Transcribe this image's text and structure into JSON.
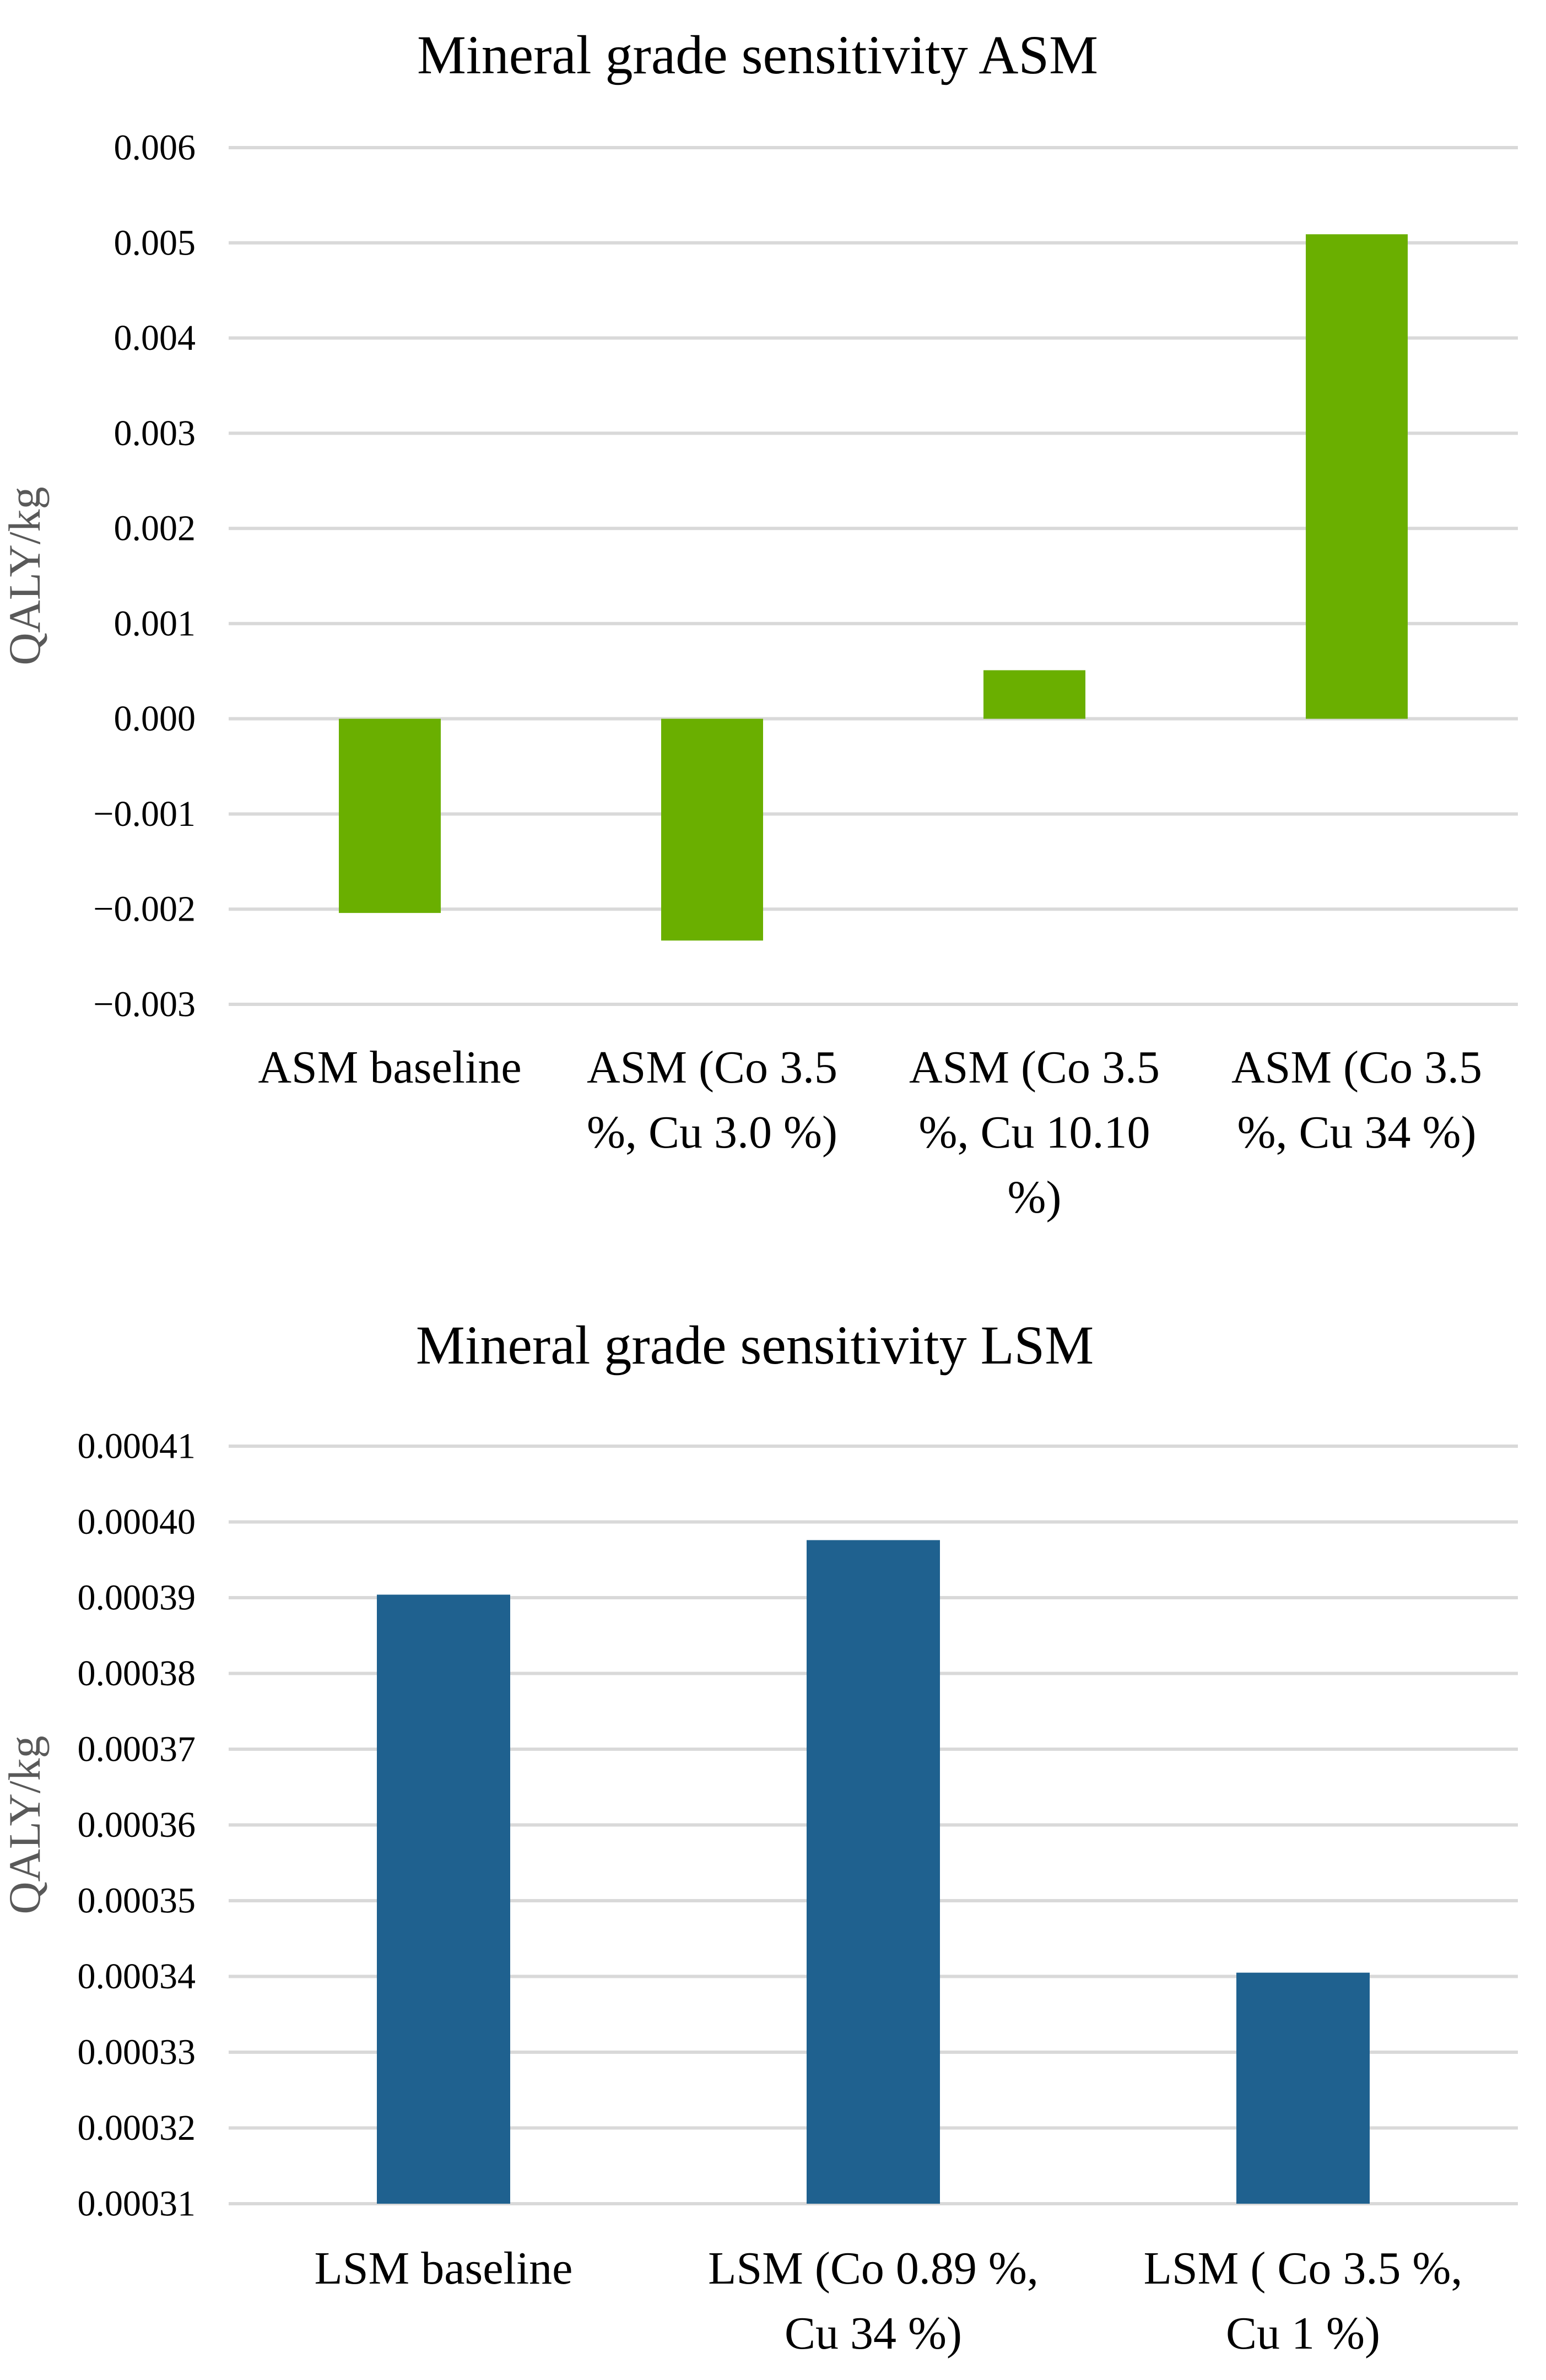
{
  "chart_data": [
    {
      "type": "bar",
      "title": "Mineral grade sensitivity  ASM",
      "xlabel": "",
      "ylabel": "QALY/kg",
      "ylim": [
        -0.003,
        0.006
      ],
      "ytick_step": 0.001,
      "ytick_decimals": 3,
      "color": "#6aaf00",
      "categories": [
        [
          "ASM baseline"
        ],
        [
          "ASM (Co 3.5",
          "%, Cu 3.0 %)"
        ],
        [
          "ASM (Co 3.5",
          "%, Cu 10.10",
          "%)"
        ],
        [
          "ASM (Co 3.5",
          "%, Cu 34 %)"
        ]
      ],
      "values": [
        -0.00204,
        -0.00233,
        0.00051,
        0.00509
      ]
    },
    {
      "type": "bar",
      "title": "Mineral grade sensitivity LSM",
      "xlabel": "",
      "ylabel": "QALY/kg",
      "ylim": [
        0.00031,
        0.00041
      ],
      "ytick_step": 1e-05,
      "ytick_decimals": 5,
      "color": "#1f618f",
      "categories": [
        [
          "LSM baseline"
        ],
        [
          "LSM (Co 0.89 %,",
          "Cu 34 %)"
        ],
        [
          "LSM ( Co 3.5 %,",
          "Cu 1 %)"
        ]
      ],
      "values": [
        0.0003904,
        0.0003976,
        0.0003405
      ]
    }
  ]
}
